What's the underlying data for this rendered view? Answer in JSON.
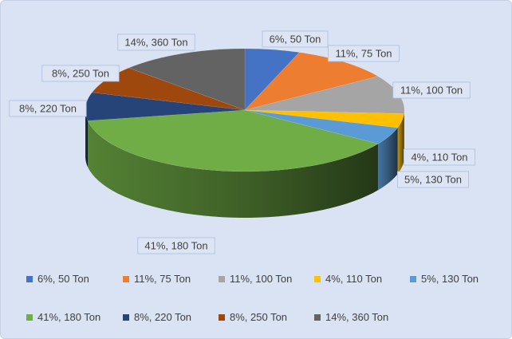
{
  "chart_data": {
    "type": "pie",
    "title": "",
    "style": "3d-exploded",
    "legend_position": "bottom",
    "slices": [
      {
        "label": "6%, 50 Ton",
        "percent": 6,
        "value": 50,
        "color": "#4472c4"
      },
      {
        "label": "11%, 75 Ton",
        "percent": 11,
        "value": 75,
        "color": "#ed7d31"
      },
      {
        "label": "11%, 100 Ton",
        "percent": 11,
        "value": 100,
        "color": "#a5a5a5"
      },
      {
        "label": "4%, 110 Ton",
        "percent": 4,
        "value": 110,
        "color": "#ffc000"
      },
      {
        "label": "5%, 130 Ton",
        "percent": 5,
        "value": 130,
        "color": "#5b9bd5"
      },
      {
        "label": "41%, 180 Ton",
        "percent": 41,
        "value": 180,
        "color": "#70ad47"
      },
      {
        "label": "8%,  220 Ton",
        "percent": 8,
        "value": 220,
        "color": "#264478"
      },
      {
        "label": "8%,  250 Ton",
        "percent": 8,
        "value": 250,
        "color": "#9e480e"
      },
      {
        "label": "14%, 360 Ton",
        "percent": 14,
        "value": 360,
        "color": "#636363"
      }
    ]
  }
}
